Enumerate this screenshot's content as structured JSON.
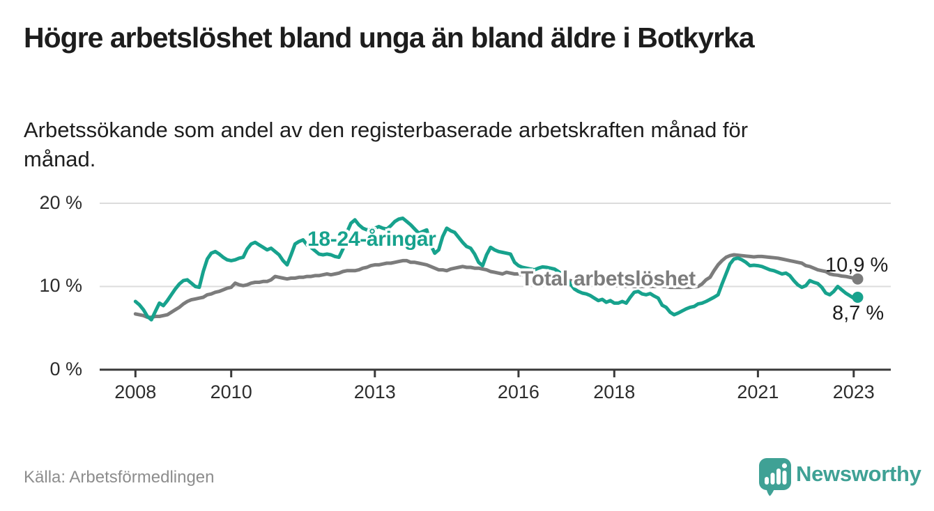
{
  "header": {
    "title": "Högre arbetslöshet bland unga än bland äldre i Botkyrka",
    "subtitle": "Arbetssökande som andel av den registerbaserade arbetskraften månad för månad."
  },
  "footer": {
    "source": "Källa: Arbetsförmedlingen",
    "brand_name": "Newsworthy"
  },
  "colors": {
    "youth_line": "#17a28d",
    "total_line": "#7c7c7c",
    "axis": "#3a3a3a",
    "grid": "#dcdcdc",
    "title_text": "#1d1d1d",
    "muted_text": "#8d8d8d",
    "brand_teal": "#3fa195",
    "background": "#ffffff"
  },
  "chart_data": {
    "type": "line",
    "title": "Högre arbetslöshet bland unga än bland äldre i Botkyrka",
    "subtitle": "Arbetssökande som andel av den registerbaserade arbetskraften månad för månad.",
    "y_unit": "%",
    "ylim": [
      0,
      21.8
    ],
    "grid": "horizontal-only",
    "legend": "inline-labels",
    "x_start_year": 2008.0,
    "x_step_months": 1,
    "y_ticks": [
      {
        "value": 20,
        "label": "20 %"
      },
      {
        "value": 10,
        "label": "10 %"
      },
      {
        "value": 0,
        "label": "0 %"
      }
    ],
    "x_ticks": [
      {
        "year": 2008,
        "label": "2008"
      },
      {
        "year": 2010,
        "label": "2010"
      },
      {
        "year": 2013,
        "label": "2013"
      },
      {
        "year": 2016,
        "label": "2016"
      },
      {
        "year": 2018,
        "label": "2018"
      },
      {
        "year": 2021,
        "label": "2021"
      },
      {
        "year": 2023,
        "label": "2023"
      }
    ],
    "series": [
      {
        "name": "Total arbetslöshet",
        "color": "#7c7c7c",
        "final_label": "10,9 %",
        "final_value": 10.9,
        "values": [
          6.7,
          6.6,
          6.5,
          6.3,
          6.3,
          6.4,
          6.4,
          6.5,
          6.6,
          6.9,
          7.2,
          7.5,
          7.9,
          8.2,
          8.4,
          8.5,
          8.6,
          8.7,
          9.0,
          9.1,
          9.3,
          9.4,
          9.6,
          9.8,
          9.9,
          10.4,
          10.2,
          10.1,
          10.2,
          10.4,
          10.5,
          10.5,
          10.6,
          10.6,
          10.8,
          11.2,
          11.1,
          11.0,
          10.9,
          11.0,
          11.0,
          11.1,
          11.1,
          11.2,
          11.2,
          11.3,
          11.3,
          11.4,
          11.5,
          11.4,
          11.5,
          11.6,
          11.8,
          11.9,
          11.9,
          11.9,
          12.0,
          12.2,
          12.3,
          12.5,
          12.6,
          12.6,
          12.7,
          12.8,
          12.8,
          12.9,
          13.0,
          13.1,
          13.1,
          12.9,
          12.9,
          12.8,
          12.7,
          12.6,
          12.4,
          12.2,
          12.0,
          12.0,
          11.9,
          12.1,
          12.2,
          12.3,
          12.4,
          12.3,
          12.3,
          12.2,
          12.2,
          12.1,
          12.0,
          11.8,
          11.7,
          11.6,
          11.5,
          11.7,
          11.6,
          11.5,
          11.5,
          11.4,
          11.4,
          11.3,
          11.3,
          11.2,
          11.1,
          11.1,
          11.0,
          11.0,
          10.9,
          10.8,
          10.7,
          10.7,
          10.6,
          10.6,
          10.5,
          10.5,
          10.4,
          10.4,
          10.3,
          10.3,
          10.2,
          10.2,
          10.1,
          10.1,
          10.1,
          10.0,
          10.0,
          10.0,
          10.0,
          10.0,
          10.0,
          10.0,
          10.0,
          10.0,
          10.0,
          10.0,
          9.9,
          9.9,
          9.9,
          9.9,
          9.9,
          9.9,
          9.95,
          10.0,
          10.3,
          10.8,
          11.1,
          11.9,
          12.6,
          13.1,
          13.5,
          13.7,
          13.8,
          13.75,
          13.7,
          13.65,
          13.6,
          13.55,
          13.6,
          13.6,
          13.55,
          13.5,
          13.45,
          13.4,
          13.3,
          13.2,
          13.1,
          13.0,
          12.9,
          12.8,
          12.5,
          12.4,
          12.2,
          12.0,
          11.9,
          11.8,
          11.5,
          11.4,
          11.35,
          11.25,
          11.2,
          11.1,
          11.0,
          10.9
        ]
      },
      {
        "name": "18-24-åringar",
        "color": "#17a28d",
        "final_label": "8,7 %",
        "final_value": 8.7,
        "values": [
          8.2,
          7.8,
          7.2,
          6.4,
          6.0,
          7.0,
          8.0,
          7.7,
          8.3,
          9.0,
          9.7,
          10.3,
          10.7,
          10.8,
          10.4,
          10.0,
          9.9,
          11.8,
          13.3,
          14.0,
          14.2,
          13.9,
          13.5,
          13.2,
          13.1,
          13.2,
          13.4,
          13.5,
          14.5,
          15.1,
          15.3,
          15.0,
          14.7,
          14.4,
          14.6,
          14.2,
          13.8,
          13.1,
          12.6,
          13.8,
          15.1,
          15.4,
          15.6,
          15.0,
          14.7,
          14.3,
          13.9,
          13.8,
          13.9,
          13.8,
          13.6,
          13.5,
          14.5,
          16.5,
          17.6,
          18.0,
          17.4,
          17.0,
          16.8,
          16.9,
          17.0,
          17.2,
          17.0,
          16.9,
          17.3,
          17.8,
          18.1,
          18.2,
          17.8,
          17.4,
          16.9,
          16.4,
          16.6,
          16.8,
          15.0,
          14.0,
          14.4,
          16.0,
          17.0,
          16.7,
          16.5,
          15.9,
          15.3,
          14.8,
          14.6,
          13.9,
          12.9,
          12.5,
          13.8,
          14.7,
          14.4,
          14.2,
          14.1,
          14.0,
          13.9,
          12.9,
          12.5,
          12.3,
          12.2,
          12.1,
          12.0,
          12.2,
          12.35,
          12.3,
          12.2,
          12.1,
          11.8,
          11.4,
          11.0,
          10.3,
          9.7,
          9.4,
          9.2,
          9.1,
          8.9,
          8.6,
          8.3,
          8.45,
          8.1,
          8.3,
          8.0,
          8.0,
          8.2,
          8.0,
          8.7,
          9.3,
          9.4,
          9.1,
          9.0,
          9.15,
          8.85,
          8.6,
          7.75,
          7.5,
          6.9,
          6.6,
          6.8,
          7.05,
          7.3,
          7.5,
          7.6,
          7.9,
          8.0,
          8.2,
          8.45,
          8.7,
          9.0,
          10.3,
          11.5,
          12.7,
          13.3,
          13.4,
          13.2,
          12.9,
          12.5,
          12.55,
          12.5,
          12.4,
          12.2,
          12.0,
          11.9,
          11.7,
          11.5,
          11.6,
          11.3,
          10.7,
          10.2,
          9.9,
          10.1,
          10.7,
          10.5,
          10.35,
          9.9,
          9.2,
          9.0,
          9.4,
          10.0,
          9.6,
          9.2,
          8.9,
          8.6,
          8.7
        ]
      }
    ]
  }
}
